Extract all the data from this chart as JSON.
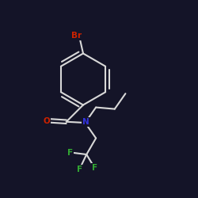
{
  "bg_color": "#141428",
  "bond_color": "#d8d8d8",
  "atom_colors": {
    "Br": "#cc2200",
    "O": "#cc2200",
    "N": "#3333dd",
    "F": "#33aa33"
  },
  "bond_width": 1.5,
  "font_size_atom": 7.5,
  "font_size_br": 7.5
}
